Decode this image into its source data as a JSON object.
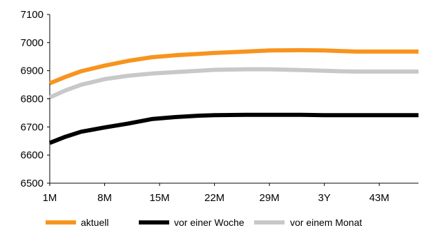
{
  "chart_data": {
    "type": "line",
    "title": "",
    "xlabel": "",
    "ylabel": "",
    "ylim": [
      6500,
      7100
    ],
    "yticks": [
      6500,
      6600,
      6700,
      6800,
      6900,
      7000,
      7100
    ],
    "x_tick_labels": [
      "1M",
      "8M",
      "15M",
      "22M",
      "29M",
      "3Y",
      "43M"
    ],
    "x_tick_months": [
      1,
      8,
      15,
      22,
      29,
      36,
      43
    ],
    "xlim_months": [
      1,
      48
    ],
    "grid": false,
    "legend_position": "bottom",
    "x": [
      1,
      3,
      5,
      8,
      11,
      14,
      17,
      20,
      22,
      26,
      29,
      33,
      36,
      38,
      40,
      43,
      48
    ],
    "series": [
      {
        "name": "aktuell",
        "color": "#F7941D",
        "values": [
          6855,
          6878,
          6898,
          6918,
          6935,
          6948,
          6955,
          6960,
          6963,
          6968,
          6972,
          6973,
          6972,
          6970,
          6968,
          6968,
          6968
        ]
      },
      {
        "name": "vor einer Woche",
        "color": "#000000",
        "values": [
          6643,
          6665,
          6683,
          6698,
          6712,
          6728,
          6735,
          6740,
          6742,
          6743,
          6743,
          6743,
          6742,
          6742,
          6742,
          6742,
          6742
        ]
      },
      {
        "name": "vor einem Monat",
        "color": "#C8C8C8",
        "values": [
          6805,
          6830,
          6850,
          6870,
          6882,
          6890,
          6895,
          6900,
          6903,
          6905,
          6905,
          6902,
          6900,
          6898,
          6897,
          6897,
          6897
        ]
      }
    ]
  }
}
